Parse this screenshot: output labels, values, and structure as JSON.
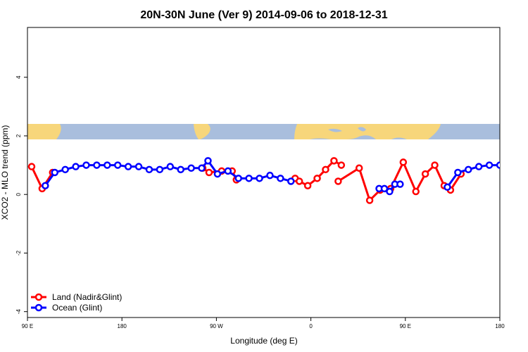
{
  "chart_data": {
    "type": "line",
    "title": "20N-30N June (Ver 9)   2014-09-06 to 2018-12-31",
    "xlabel": "Longitude (deg E)",
    "ylabel": "XCO2 - MLO trend (ppm)",
    "xlim": [
      90,
      540
    ],
    "ylim": [
      -4.2,
      5.7
    ],
    "x_ticks": [
      {
        "value": 90,
        "label": "90 E"
      },
      {
        "value": 180,
        "label": "180"
      },
      {
        "value": 270,
        "label": "90 W"
      },
      {
        "value": 360,
        "label": "0"
      },
      {
        "value": 450,
        "label": "90 E"
      },
      {
        "value": 540,
        "label": "180"
      }
    ],
    "y_ticks": [
      {
        "value": -4,
        "label": "-4"
      },
      {
        "value": -2,
        "label": "-2"
      },
      {
        "value": 0,
        "label": "0"
      },
      {
        "value": 2,
        "label": "2"
      },
      {
        "value": 4,
        "label": "4"
      }
    ],
    "grid": false,
    "legend_position": "bottom-left",
    "map_band": {
      "y_range": [
        1.85,
        2.4
      ],
      "ocean_color": "#a9bedd",
      "land_color": "#f7d67b"
    },
    "series": [
      {
        "name": "Land (Nadir&Glint)",
        "color": "#ff0000",
        "segments": [
          {
            "x": [
              94,
              104,
              114
            ],
            "y": [
              0.95,
              0.2,
              0.75
            ]
          },
          {
            "x": [
              257,
              263,
              275,
              285,
              289
            ],
            "y": [
              0.9,
              0.75,
              0.8,
              0.8,
              0.5
            ]
          },
          {
            "x": [
              345,
              349,
              357,
              366,
              374,
              382,
              389
            ],
            "y": [
              0.55,
              0.45,
              0.3,
              0.55,
              0.85,
              1.15,
              1.0
            ]
          },
          {
            "x": [
              386,
              406,
              416,
              426,
              436,
              448,
              460,
              469,
              478,
              487,
              493,
              503
            ],
            "y": [
              0.45,
              0.9,
              -0.2,
              0.15,
              0.2,
              1.1,
              0.1,
              0.7,
              1.0,
              0.3,
              0.15,
              0.7
            ]
          }
        ],
        "x": [
          94,
          104,
          114,
          257,
          263,
          275,
          285,
          289,
          345,
          349,
          357,
          366,
          374,
          382,
          389,
          386,
          406,
          416,
          426,
          436,
          448,
          460,
          469,
          478,
          487,
          493,
          503
        ],
        "y": [
          0.95,
          0.2,
          0.75,
          0.9,
          0.75,
          0.8,
          0.8,
          0.5,
          0.55,
          0.45,
          0.3,
          0.55,
          0.85,
          1.15,
          1.0,
          0.45,
          0.9,
          -0.2,
          0.15,
          0.2,
          1.1,
          0.1,
          0.7,
          1.0,
          0.3,
          0.15,
          0.7
        ]
      },
      {
        "name": "Ocean (Glint)",
        "color": "#0000ff",
        "segments": [
          {
            "x": [
              107,
              116,
              126,
              136,
              146,
              156,
              166,
              176,
              186,
              196,
              206,
              216,
              226,
              236,
              246,
              256,
              262,
              271,
              281,
              291,
              301,
              311,
              321,
              331,
              341
            ],
            "y": [
              0.3,
              0.75,
              0.85,
              0.95,
              1.0,
              1.0,
              1.0,
              1.0,
              0.95,
              0.95,
              0.85,
              0.85,
              0.95,
              0.85,
              0.9,
              0.9,
              1.15,
              0.7,
              0.8,
              0.55,
              0.55,
              0.55,
              0.65,
              0.55,
              0.45
            ]
          },
          {
            "x": [
              425,
              430,
              435,
              440,
              445
            ],
            "y": [
              0.2,
              0.2,
              0.1,
              0.35,
              0.35
            ]
          },
          {
            "x": [
              490,
              500,
              510,
              520,
              530,
              540
            ],
            "y": [
              0.25,
              0.75,
              0.85,
              0.95,
              1.0,
              1.0
            ]
          }
        ],
        "x": [
          107,
          116,
          126,
          136,
          146,
          156,
          166,
          176,
          186,
          196,
          206,
          216,
          226,
          236,
          246,
          256,
          262,
          271,
          281,
          291,
          301,
          311,
          321,
          331,
          341,
          425,
          430,
          435,
          440,
          445,
          490,
          500,
          510,
          520,
          530,
          540
        ],
        "y": [
          0.3,
          0.75,
          0.85,
          0.95,
          1.0,
          1.0,
          1.0,
          1.0,
          0.95,
          0.95,
          0.85,
          0.85,
          0.95,
          0.85,
          0.9,
          0.9,
          1.15,
          0.7,
          0.8,
          0.55,
          0.55,
          0.55,
          0.65,
          0.55,
          0.45,
          0.2,
          0.2,
          0.1,
          0.35,
          0.35,
          0.25,
          0.75,
          0.85,
          0.95,
          1.0,
          1.0
        ]
      }
    ]
  }
}
